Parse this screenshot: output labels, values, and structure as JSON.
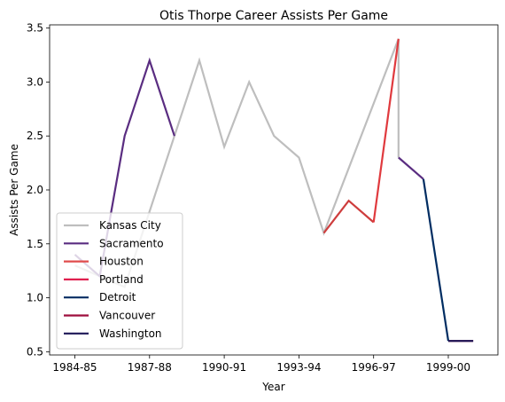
{
  "chart_data": {
    "type": "line",
    "title": "Otis Thorpe Career Assists Per Game",
    "xlabel": "Year",
    "ylabel": "Assists Per Game",
    "x_tick_labels": [
      "1984-85",
      "1987-88",
      "1990-91",
      "1993-94",
      "1996-97",
      "1999-00"
    ],
    "y_ticks": [
      0.5,
      1.0,
      1.5,
      2.0,
      2.5,
      3.0,
      3.5
    ],
    "y_tick_labels": [
      "0.5",
      "1.0",
      "1.5",
      "2.0",
      "2.5",
      "3.0",
      "3.5"
    ],
    "ylim": [
      0.47,
      3.53
    ],
    "legend_position": "lower-left",
    "grid": false,
    "series": [
      {
        "name": "Kansas City",
        "color": "#bebebe",
        "x": [
          "1984-85",
          "1985-86",
          "1986-87",
          "1988-89",
          "1989-90",
          "1990-91",
          "1991-92",
          "1992-93",
          "1993-94",
          "1994-95",
          "1997-98",
          "1997-98"
        ],
        "values": [
          1.3,
          1.2,
          1.1,
          2.5,
          3.2,
          2.4,
          3.0,
          2.5,
          2.3,
          1.6,
          3.4,
          2.3
        ]
      },
      {
        "name": "Sacramento",
        "color": "#5a2d81",
        "x": [
          "1984-85",
          "1985-86",
          "1986-87",
          "1987-88",
          "1988-89"
        ],
        "values": [
          1.4,
          1.2,
          2.5,
          3.2,
          2.5
        ]
      },
      {
        "name": "Sacramento",
        "color": "#5a2d81",
        "x": [
          "1997-98",
          "1998-99"
        ],
        "values": [
          2.3,
          2.1
        ]
      },
      {
        "name": "Houston",
        "color": "#ce3d3d",
        "x": [
          "1994-95",
          "1995-96",
          "1996-97"
        ],
        "values": [
          1.6,
          1.9,
          1.7
        ]
      },
      {
        "name": "Portland",
        "color": "#e03a3e",
        "x": [
          "1996-97",
          "1997-98"
        ],
        "values": [
          1.7,
          3.4
        ]
      },
      {
        "name": "Detroit",
        "color": "#002d62",
        "x": [
          "1998-99",
          "1999-00"
        ],
        "values": [
          2.1,
          0.6
        ]
      },
      {
        "name": "Vancouver",
        "color": "#9e0f3c",
        "x": [
          "1999-00",
          "2000-01"
        ],
        "values": [
          0.6,
          0.6
        ]
      },
      {
        "name": "Washington",
        "color": "#1d1757",
        "x": [
          "1999-00",
          "2000-01"
        ],
        "values": [
          0.6,
          0.6
        ]
      }
    ],
    "legend": [
      {
        "name": "Kansas City",
        "color": "#bebebe"
      },
      {
        "name": "Sacramento",
        "color": "#5a2d81"
      },
      {
        "name": "Houston",
        "color": "#e04c4c"
      },
      {
        "name": "Portland",
        "color": "#e0204f"
      },
      {
        "name": "Detroit",
        "color": "#002d62"
      },
      {
        "name": "Vancouver",
        "color": "#9e0f3c"
      },
      {
        "name": "Washington",
        "color": "#1d1757"
      }
    ]
  }
}
